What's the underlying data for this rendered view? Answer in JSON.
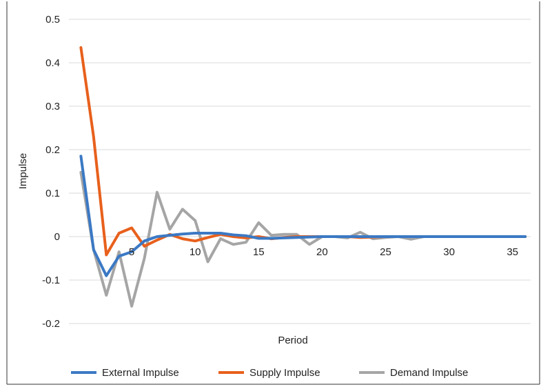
{
  "chart_data": {
    "type": "line",
    "title": "",
    "xlabel": "Period",
    "ylabel": "Impulse",
    "xlim": [
      0,
      36
    ],
    "ylim": [
      -0.2,
      0.5
    ],
    "x_ticks": [
      "5",
      "10",
      "15",
      "20",
      "25",
      "30",
      "35"
    ],
    "y_ticks": [
      "0.5",
      "0.4",
      "0.3",
      "0.2",
      "0.1",
      "0",
      "-0.1",
      "-0.2"
    ],
    "y_tick_values": [
      0.5,
      0.4,
      0.3,
      0.2,
      0.1,
      0,
      -0.1,
      -0.2
    ],
    "x_tick_values": [
      5,
      10,
      15,
      20,
      25,
      30,
      35
    ],
    "grid": "horizontal",
    "legend_position": "bottom",
    "x": [
      1,
      2,
      3,
      4,
      5,
      6,
      7,
      8,
      9,
      10,
      11,
      12,
      13,
      14,
      15,
      16,
      17,
      18,
      19,
      20,
      21,
      22,
      23,
      24,
      25,
      26,
      27,
      28,
      29,
      30,
      31,
      32,
      33,
      34,
      35,
      36
    ],
    "series": [
      {
        "name": "External Impulse",
        "color": "#3b79c4",
        "values": [
          0.185,
          -0.03,
          -0.09,
          -0.045,
          -0.035,
          -0.01,
          0.0,
          0.003,
          0.006,
          0.008,
          0.008,
          0.008,
          0.004,
          0.002,
          -0.004,
          -0.004,
          -0.003,
          -0.002,
          -0.001,
          0.0,
          0.0,
          0.0,
          0.0,
          0.0,
          0.0,
          0.0,
          0.0,
          0.0,
          0.0,
          0.0,
          0.0,
          0.0,
          0.0,
          0.0,
          0.0,
          0.0
        ]
      },
      {
        "name": "Supply Impulse",
        "color": "#e8601c",
        "values": [
          0.435,
          0.23,
          -0.042,
          0.008,
          0.02,
          -0.022,
          -0.008,
          0.005,
          -0.005,
          -0.01,
          -0.002,
          0.005,
          0.0,
          -0.003,
          0.0,
          -0.005,
          -0.002,
          0.0,
          0.0,
          0.0,
          0.0,
          0.0,
          -0.002,
          -0.001,
          0.0,
          0.0,
          0.0,
          0.0,
          0.0,
          0.0,
          0.0,
          0.0,
          0.0,
          0.0,
          0.0,
          0.0
        ]
      },
      {
        "name": "Demand Impulse",
        "color": "#a5a5a5",
        "values": [
          0.148,
          -0.03,
          -0.135,
          -0.035,
          -0.16,
          -0.05,
          0.102,
          0.017,
          0.063,
          0.037,
          -0.058,
          -0.005,
          -0.018,
          -0.013,
          0.032,
          0.003,
          0.005,
          0.005,
          -0.018,
          0.0,
          0.0,
          -0.003,
          0.01,
          -0.005,
          -0.002,
          0.0,
          -0.006,
          0.0,
          0.0,
          0.0,
          0.0,
          0.0,
          0.0,
          0.0,
          0.0,
          0.0
        ]
      }
    ]
  }
}
